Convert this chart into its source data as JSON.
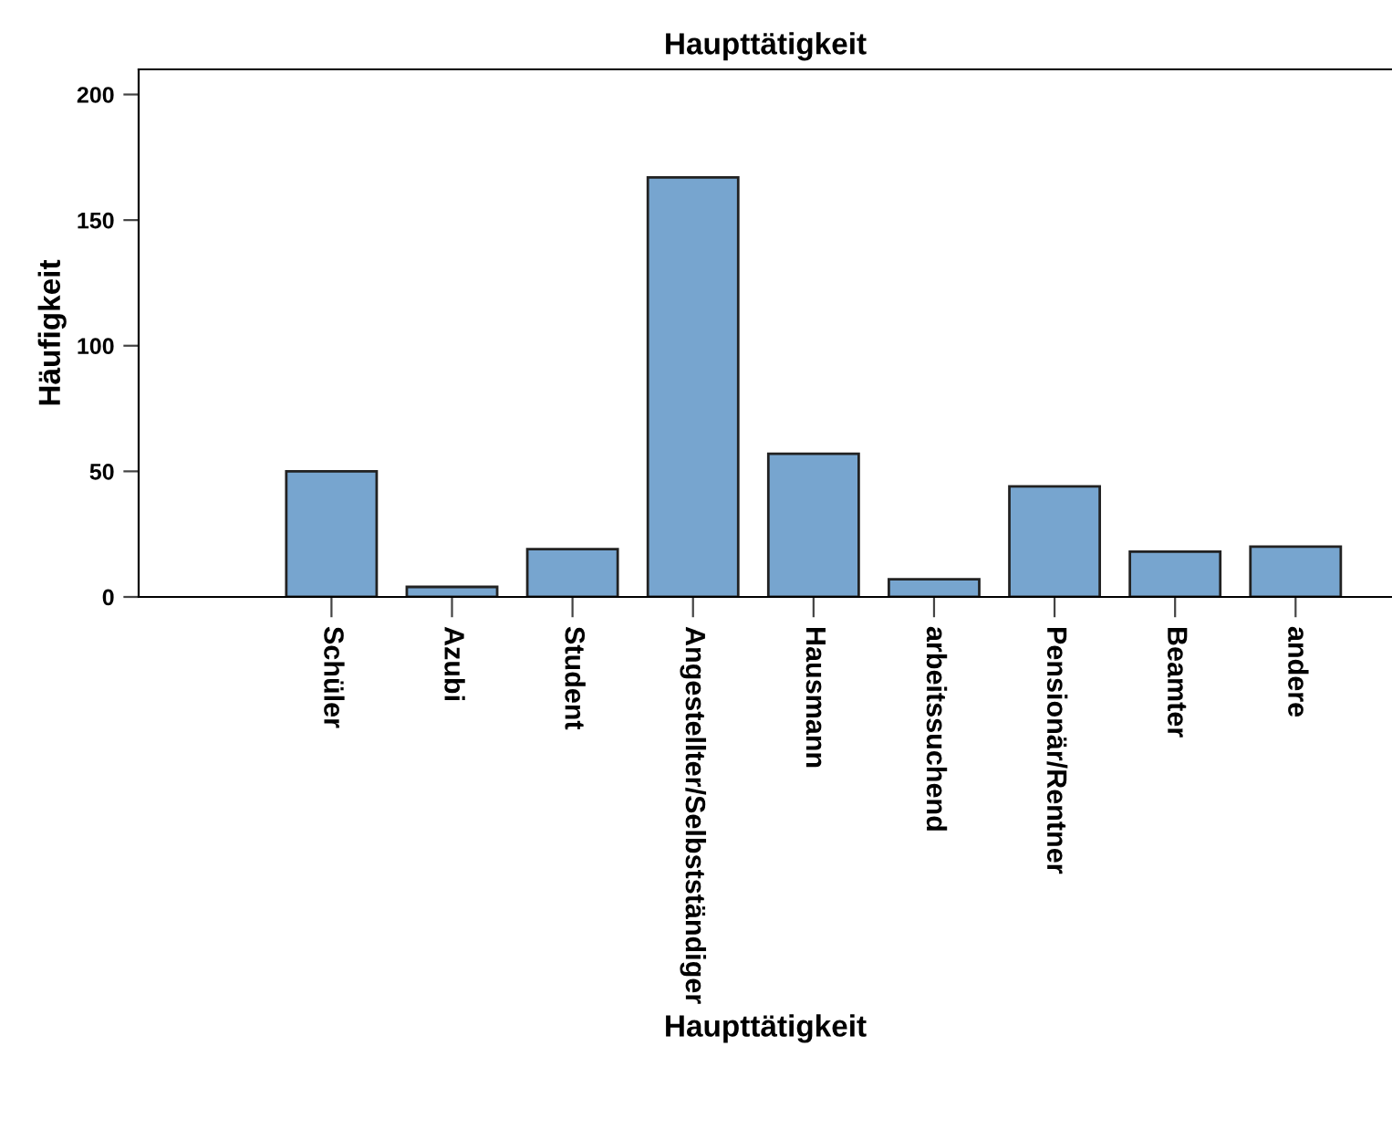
{
  "chart_data": {
    "type": "bar",
    "title": "Haupttätigkeit",
    "xlabel": "Haupttätigkeit",
    "ylabel": "Häufigkeit",
    "categories": [
      "Schüler",
      "Azubi",
      "Student",
      "Angestellter/Selbstständiger",
      "Hausmann",
      "arbeitssuchend",
      "Pensionär/Rentner",
      "Beamter",
      "andere"
    ],
    "values": [
      50,
      4,
      19,
      167,
      57,
      7,
      44,
      18,
      20
    ],
    "color": "#77a5cf",
    "ylim": [
      0,
      210
    ],
    "yticks": [
      0,
      50,
      100,
      150,
      200
    ],
    "grid": false
  }
}
